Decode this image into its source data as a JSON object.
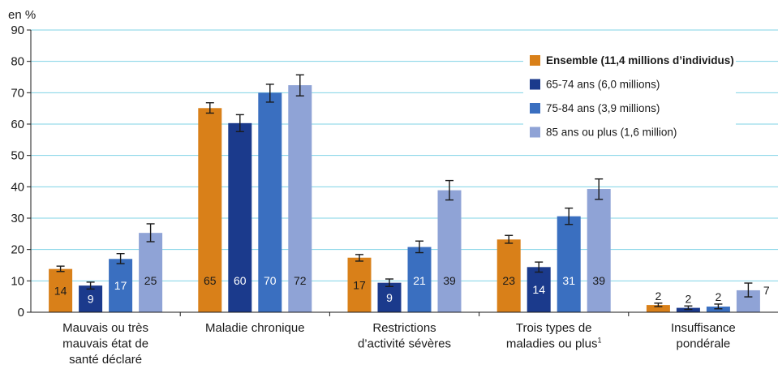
{
  "chart_data": {
    "type": "bar",
    "unit_label": "en %",
    "ylim": [
      0,
      90
    ],
    "yticks": [
      0,
      10,
      20,
      30,
      40,
      50,
      60,
      70,
      80,
      90
    ],
    "grid": true,
    "legend_position": "top-right",
    "categories": [
      [
        "Mauvais ou très",
        "mauvais état de",
        "santé déclaré"
      ],
      [
        "Maladie chronique"
      ],
      [
        "Restrictions",
        "d’activité sévères"
      ],
      [
        "Trois types de",
        "maladies ou plus"
      ],
      [
        "Insuffisance",
        "pondérale"
      ]
    ],
    "category_footnotes": [
      "",
      "",
      "",
      "1",
      ""
    ],
    "series": [
      {
        "name": "Ensemble (11,4 millions d’individus)",
        "bold": true,
        "color": "#d98019",
        "values": [
          14,
          65,
          17,
          23,
          2
        ],
        "display_values": [
          13.8,
          65.1,
          17.4,
          23.2,
          2.3
        ],
        "error_low": [
          13.0,
          63.5,
          16.3,
          22.0,
          1.8
        ],
        "error_high": [
          14.7,
          66.8,
          18.4,
          24.5,
          2.9
        ],
        "label_color": "#1a1a1a"
      },
      {
        "name": "65-74 ans (6,0 millions)",
        "bold": false,
        "color": "#1b3a8c",
        "values": [
          9,
          60,
          9,
          14,
          2
        ],
        "display_values": [
          8.5,
          60.3,
          9.4,
          14.4,
          1.4
        ],
        "error_low": [
          7.4,
          57.6,
          8.2,
          12.8,
          0.9
        ],
        "error_high": [
          9.6,
          63.0,
          10.6,
          16.0,
          2.0
        ],
        "label_color": "#ffffff"
      },
      {
        "name": "75-84 ans (3,9 millions)",
        "bold": false,
        "color": "#3a6fc0",
        "values": [
          17,
          70,
          21,
          31,
          2
        ],
        "display_values": [
          17.0,
          70.0,
          20.8,
          30.6,
          1.8
        ],
        "error_low": [
          15.5,
          67.0,
          19.0,
          28.0,
          1.1
        ],
        "error_high": [
          18.7,
          72.7,
          22.7,
          33.2,
          2.6
        ],
        "label_color": "#ffffff"
      },
      {
        "name": "85 ans ou plus (1,6 million)",
        "bold": false,
        "color": "#8fa3d6",
        "values": [
          25,
          72,
          39,
          39,
          7
        ],
        "display_values": [
          25.3,
          72.4,
          38.9,
          39.3,
          7.0
        ],
        "error_low": [
          22.5,
          69.0,
          35.8,
          36.0,
          4.9
        ],
        "error_high": [
          28.2,
          75.7,
          42.0,
          42.5,
          9.3
        ],
        "label_color": "#1a1a1a"
      }
    ]
  }
}
